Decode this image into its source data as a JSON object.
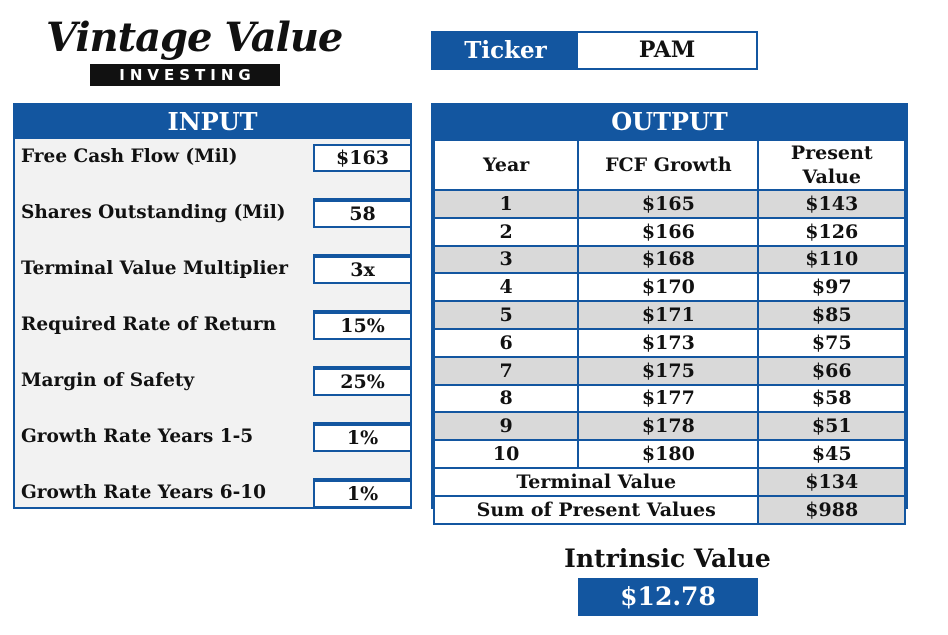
{
  "logo": {
    "script": "Vintage Value",
    "band": "INVESTING"
  },
  "ticker": {
    "label": "Ticker",
    "value": "PAM"
  },
  "input": {
    "title": "INPUT",
    "rows": [
      {
        "label": "Free Cash Flow (Mil)",
        "value": "$163"
      },
      {
        "label": "Shares Outstanding (Mil)",
        "value": "58"
      },
      {
        "label": "Terminal Value Multiplier",
        "value": "3x"
      },
      {
        "label": "Required Rate of Return",
        "value": "15%"
      },
      {
        "label": "Margin of Safety",
        "value": "25%"
      },
      {
        "label": "Growth Rate Years 1-5",
        "value": "1%"
      },
      {
        "label": "Growth Rate Years 6-10",
        "value": "1%"
      }
    ]
  },
  "output": {
    "title": "OUTPUT",
    "headers": [
      "Year",
      "FCF Growth",
      "Present Value"
    ],
    "rows": [
      [
        "1",
        "$165",
        "$143"
      ],
      [
        "2",
        "$166",
        "$126"
      ],
      [
        "3",
        "$168",
        "$110"
      ],
      [
        "4",
        "$170",
        "$97"
      ],
      [
        "5",
        "$171",
        "$85"
      ],
      [
        "6",
        "$173",
        "$75"
      ],
      [
        "7",
        "$175",
        "$66"
      ],
      [
        "8",
        "$177",
        "$58"
      ],
      [
        "9",
        "$178",
        "$51"
      ],
      [
        "10",
        "$180",
        "$45"
      ]
    ],
    "terminal": {
      "label": "Terminal Value",
      "value": "$134"
    },
    "sum": {
      "label": "Sum of Present Values",
      "value": "$988"
    }
  },
  "intrinsic": {
    "label": "Intrinsic Value",
    "value": "$12.78"
  },
  "colors": {
    "brand_blue": "#1356a0",
    "row_shade": "#d9d9d9",
    "panel_bg": "#f2f2f2"
  }
}
